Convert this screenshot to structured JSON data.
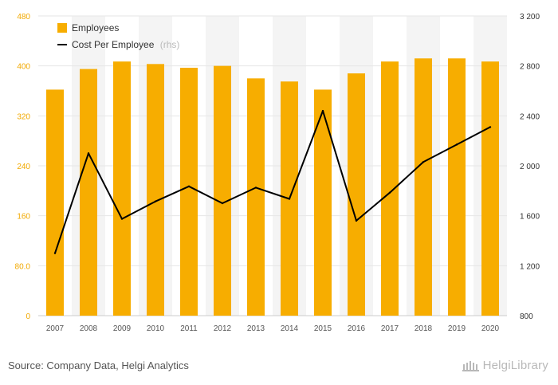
{
  "chart_data": {
    "type": "bar+line",
    "categories": [
      "2007",
      "2008",
      "2009",
      "2010",
      "2011",
      "2012",
      "2013",
      "2014",
      "2015",
      "2016",
      "2017",
      "2018",
      "2019",
      "2020"
    ],
    "series": [
      {
        "name": "Employees",
        "type": "bar",
        "axis": "left",
        "color": "#f7ad00",
        "values": [
          362,
          395,
          407,
          403,
          397,
          400,
          380,
          375,
          362,
          388,
          407,
          412,
          412,
          407
        ]
      },
      {
        "name": "Cost Per Employee",
        "name_suffix": "(rhs)",
        "type": "line",
        "axis": "right",
        "color": "#000000",
        "values": [
          1300,
          2100,
          1575,
          1715,
          1835,
          1700,
          1825,
          1735,
          2440,
          1560,
          1785,
          2030,
          2170,
          2310
        ]
      }
    ],
    "y_left": {
      "ticks": [
        0,
        80,
        160,
        240,
        320,
        400,
        480
      ],
      "tick_labels": [
        "0",
        "80.0",
        "160",
        "240",
        "320",
        "400",
        "480"
      ],
      "range": [
        0,
        480
      ]
    },
    "y_right": {
      "ticks": [
        800,
        1200,
        1600,
        2000,
        2400,
        2800,
        3200
      ],
      "tick_labels": [
        "800",
        "1 200",
        "1 600",
        "2 000",
        "2 400",
        "2 800",
        "3 200"
      ],
      "range": [
        800,
        3200
      ]
    },
    "grid": true,
    "legend_position": "top-left"
  },
  "footer": {
    "source": "Source: Company Data, Helgi Analytics",
    "brand": "HelgiLibrary"
  },
  "colors": {
    "bar": "#f7ad00",
    "line": "#000000",
    "left_axis_text": "#f2a900"
  }
}
